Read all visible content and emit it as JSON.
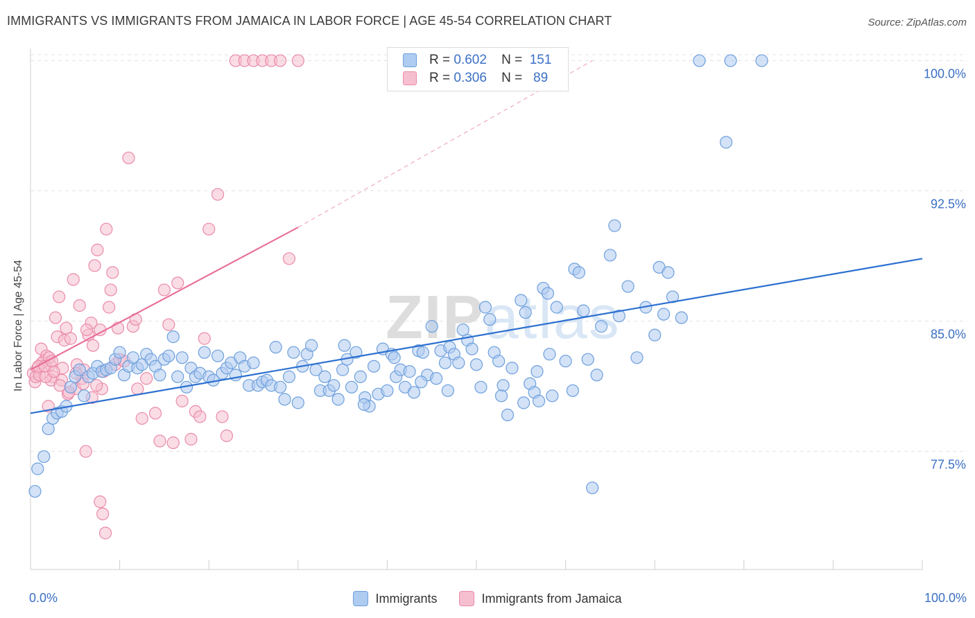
{
  "title": "IMMIGRANTS VS IMMIGRANTS FROM JAMAICA IN LABOR FORCE | AGE 45-54 CORRELATION CHART",
  "source": "Source: ZipAtlas.com",
  "watermark": "ZIPatlas",
  "legend_top": {
    "rows": [
      {
        "r_label": "R =",
        "r_value": "0.602",
        "n_label": "N =",
        "n_value": "151"
      },
      {
        "r_label": "R =",
        "r_value": "0.306",
        "n_label": "N =",
        "n_value": "89"
      }
    ]
  },
  "colors": {
    "blue_fill": "#aecbf0",
    "blue_stroke": "#6d9fdc",
    "blue_line": "#2b6fd0",
    "pink_fill": "#f6bfd0",
    "pink_stroke": "#ea8aa9",
    "pink_line": "#e8709a",
    "grid": "#e3e3e3",
    "tick_text": "#3a6fc4"
  },
  "chart_data": {
    "type": "scatter",
    "title": "IMMIGRANTS VS IMMIGRANTS FROM JAMAICA IN LABOR FORCE | AGE 45-54 CORRELATION CHART",
    "xlabel": "",
    "ylabel": "In Labor Force | Age 45-54",
    "xlim": [
      0,
      100
    ],
    "ylim": [
      70.7,
      100.7
    ],
    "x_tick_labels": [
      "0.0%",
      "100.0%"
    ],
    "y_ticks": [
      77.5,
      85.0,
      92.5,
      100.0
    ],
    "y_tick_labels": [
      "77.5%",
      "85.0%",
      "92.5%",
      "100.0%"
    ],
    "grid": true,
    "legend_position": "top-center and bottom",
    "series": [
      {
        "name": "Immigrants",
        "color": "#aecbf0",
        "trend": {
          "x": [
            0,
            100
          ],
          "y": [
            79.7,
            88.6
          ]
        },
        "points": [
          [
            0.5,
            75.2
          ],
          [
            0.8,
            76.5
          ],
          [
            1.5,
            77.2
          ],
          [
            2,
            78.8
          ],
          [
            2.5,
            79.4
          ],
          [
            3,
            79.7
          ],
          [
            3.5,
            79.8
          ],
          [
            4,
            80.1
          ],
          [
            4.5,
            81.2
          ],
          [
            5,
            81.8
          ],
          [
            5.5,
            82.2
          ],
          [
            6,
            80.7
          ],
          [
            6.5,
            81.8
          ],
          [
            7,
            82.0
          ],
          [
            7.5,
            82.4
          ],
          [
            8,
            82.1
          ],
          [
            8.5,
            82.2
          ],
          [
            9,
            82.3
          ],
          [
            9.5,
            82.8
          ],
          [
            10,
            83.2
          ],
          [
            10.5,
            81.9
          ],
          [
            11,
            82.4
          ],
          [
            11.5,
            82.9
          ],
          [
            12,
            82.3
          ],
          [
            12.5,
            82.5
          ],
          [
            13,
            83.1
          ],
          [
            13.5,
            82.8
          ],
          [
            14,
            82.4
          ],
          [
            14.5,
            81.9
          ],
          [
            15,
            82.8
          ],
          [
            15.5,
            83.0
          ],
          [
            16,
            84.1
          ],
          [
            16.5,
            81.8
          ],
          [
            17,
            82.9
          ],
          [
            17.5,
            81.2
          ],
          [
            18,
            82.3
          ],
          [
            18.5,
            81.8
          ],
          [
            19,
            82.0
          ],
          [
            19.5,
            83.2
          ],
          [
            20,
            81.8
          ],
          [
            20.5,
            81.6
          ],
          [
            21,
            83.0
          ],
          [
            21.5,
            82.0
          ],
          [
            22,
            82.3
          ],
          [
            22.5,
            82.6
          ],
          [
            23,
            81.9
          ],
          [
            23.5,
            82.9
          ],
          [
            24,
            82.4
          ],
          [
            24.5,
            81.3
          ],
          [
            25,
            82.6
          ],
          [
            25.5,
            81.3
          ],
          [
            26,
            81.5
          ],
          [
            26.5,
            81.6
          ],
          [
            27,
            81.3
          ],
          [
            27.5,
            83.5
          ],
          [
            28,
            81.2
          ],
          [
            28.5,
            80.5
          ],
          [
            29,
            81.8
          ],
          [
            29.5,
            83.2
          ],
          [
            30,
            80.3
          ],
          [
            30.5,
            82.4
          ],
          [
            31,
            83.1
          ],
          [
            31.5,
            83.6
          ],
          [
            32,
            82.2
          ],
          [
            32.5,
            81.0
          ],
          [
            33,
            81.8
          ],
          [
            33.5,
            81.0
          ],
          [
            34,
            81.3
          ],
          [
            34.5,
            80.5
          ],
          [
            35,
            82.2
          ],
          [
            35.5,
            82.8
          ],
          [
            36,
            81.2
          ],
          [
            36.5,
            83.2
          ],
          [
            37,
            81.8
          ],
          [
            37.5,
            80.6
          ],
          [
            38,
            80.1
          ],
          [
            38.5,
            82.4
          ],
          [
            39,
            80.8
          ],
          [
            39.5,
            83.4
          ],
          [
            40,
            81.0
          ],
          [
            40.5,
            83.1
          ],
          [
            41,
            81.8
          ],
          [
            41.5,
            82.2
          ],
          [
            42,
            81.2
          ],
          [
            42.5,
            82.1
          ],
          [
            43,
            80.9
          ],
          [
            43.5,
            83.3
          ],
          [
            44,
            83.2
          ],
          [
            44.5,
            81.9
          ],
          [
            45,
            84.7
          ],
          [
            45.5,
            81.7
          ],
          [
            46,
            83.3
          ],
          [
            46.5,
            82.6
          ],
          [
            47,
            83.5
          ],
          [
            47.5,
            83.1
          ],
          [
            48,
            82.6
          ],
          [
            48.5,
            84.5
          ],
          [
            49,
            83.9
          ],
          [
            49.5,
            83.4
          ],
          [
            50,
            82.5
          ],
          [
            50.5,
            81.2
          ],
          [
            51,
            85.8
          ],
          [
            51.5,
            85.1
          ],
          [
            52,
            83.2
          ],
          [
            52.5,
            82.7
          ],
          [
            53,
            81.3
          ],
          [
            53.5,
            79.6
          ],
          [
            54,
            82.3
          ],
          [
            55,
            86.2
          ],
          [
            55.5,
            85.5
          ],
          [
            56,
            81.4
          ],
          [
            56.5,
            80.9
          ],
          [
            57,
            80.4
          ],
          [
            57.5,
            86.9
          ],
          [
            58,
            86.6
          ],
          [
            58.5,
            80.7
          ],
          [
            59,
            85.8
          ],
          [
            60,
            82.7
          ],
          [
            61,
            88.0
          ],
          [
            61.5,
            87.8
          ],
          [
            62,
            85.6
          ],
          [
            62.5,
            82.8
          ],
          [
            63,
            75.4
          ],
          [
            63.5,
            81.9
          ],
          [
            64,
            84.7
          ],
          [
            65,
            88.8
          ],
          [
            65.5,
            90.5
          ],
          [
            66,
            85.3
          ],
          [
            67,
            87.0
          ],
          [
            68,
            82.9
          ],
          [
            69,
            85.8
          ],
          [
            70,
            84.2
          ],
          [
            70.5,
            88.1
          ],
          [
            71,
            85.4
          ],
          [
            71.5,
            87.8
          ],
          [
            72,
            86.4
          ],
          [
            73,
            85.2
          ],
          [
            75,
            100
          ],
          [
            78,
            95.3
          ],
          [
            78.5,
            100
          ],
          [
            82,
            100
          ],
          [
            55.3,
            80.3
          ],
          [
            46.8,
            81.0
          ],
          [
            60.8,
            81.0
          ],
          [
            35.2,
            83.6
          ],
          [
            37.4,
            80.2
          ],
          [
            40.8,
            82.9
          ],
          [
            52.8,
            80.7
          ],
          [
            56.8,
            82.1
          ],
          [
            58.2,
            83.1
          ],
          [
            43.8,
            81.5
          ]
        ]
      },
      {
        "name": "Immigrants from Jamaica",
        "color": "#f6bfd0",
        "trend": {
          "x": [
            0,
            30
          ],
          "y": [
            82.2,
            90.4
          ]
        },
        "trend_extended": {
          "x": [
            30,
            63
          ],
          "y": [
            90.4,
            100
          ]
        },
        "points": [
          [
            0.3,
            82.0
          ],
          [
            0.5,
            81.5
          ],
          [
            0.6,
            81.8
          ],
          [
            0.8,
            82.3
          ],
          [
            1,
            81.9
          ],
          [
            1.2,
            83.4
          ],
          [
            1.5,
            82.7
          ],
          [
            1.8,
            83.0
          ],
          [
            2,
            80.1
          ],
          [
            2.2,
            82.5
          ],
          [
            2.5,
            81.8
          ],
          [
            2.8,
            85.2
          ],
          [
            3,
            84.1
          ],
          [
            3.2,
            86.4
          ],
          [
            3.5,
            81.6
          ],
          [
            3.8,
            83.9
          ],
          [
            4,
            84.6
          ],
          [
            4.2,
            80.8
          ],
          [
            4.5,
            84.0
          ],
          [
            4.8,
            87.4
          ],
          [
            5,
            81.1
          ],
          [
            5.2,
            82.5
          ],
          [
            5.5,
            85.9
          ],
          [
            5.8,
            81.7
          ],
          [
            6,
            82.2
          ],
          [
            6.2,
            77.5
          ],
          [
            6.5,
            84.2
          ],
          [
            6.8,
            84.9
          ],
          [
            7,
            83.6
          ],
          [
            7.2,
            88.2
          ],
          [
            7.5,
            89.1
          ],
          [
            7.8,
            84.5
          ],
          [
            8,
            81.1
          ],
          [
            8.2,
            82.1
          ],
          [
            8.5,
            90.3
          ],
          [
            8.8,
            85.8
          ],
          [
            9,
            86.8
          ],
          [
            9.2,
            87.8
          ],
          [
            9.5,
            82.5
          ],
          [
            9.8,
            84.6
          ],
          [
            10,
            82.8
          ],
          [
            10.5,
            82.7
          ],
          [
            11,
            94.4
          ],
          [
            11.5,
            84.7
          ],
          [
            12,
            81.1
          ],
          [
            12.5,
            79.4
          ],
          [
            13,
            81.7
          ],
          [
            14,
            79.7
          ],
          [
            14.5,
            78.1
          ],
          [
            15,
            86.8
          ],
          [
            15.5,
            84.8
          ],
          [
            16,
            78.0
          ],
          [
            16.5,
            87.2
          ],
          [
            17,
            80.4
          ],
          [
            18,
            78.2
          ],
          [
            18.5,
            79.8
          ],
          [
            19,
            79.5
          ],
          [
            19.5,
            84.0
          ],
          [
            20,
            90.3
          ],
          [
            21,
            92.3
          ],
          [
            21.5,
            79.5
          ],
          [
            22,
            78.4
          ],
          [
            23,
            100
          ],
          [
            24,
            100
          ],
          [
            25,
            100
          ],
          [
            26,
            100
          ],
          [
            27,
            100
          ],
          [
            28,
            100
          ],
          [
            29,
            88.6
          ],
          [
            30,
            100
          ],
          [
            7.8,
            74.6
          ],
          [
            8.1,
            73.9
          ],
          [
            8.4,
            72.8
          ],
          [
            2.3,
            81.6
          ],
          [
            3.6,
            82.3
          ],
          [
            4.3,
            80.9
          ],
          [
            5.1,
            82.0
          ],
          [
            5.9,
            81.4
          ],
          [
            6.3,
            84.5
          ],
          [
            6.9,
            80.6
          ],
          [
            7.4,
            81.3
          ],
          [
            1.3,
            82.6
          ],
          [
            1.7,
            81.8
          ],
          [
            2.1,
            82.9
          ],
          [
            2.6,
            82.1
          ],
          [
            3.3,
            81.3
          ],
          [
            0.9,
            82.4
          ],
          [
            1.6,
            82.4
          ],
          [
            2.4,
            82.7
          ],
          [
            11.8,
            85.1
          ]
        ]
      }
    ]
  },
  "legend_bottom": [
    {
      "label": "Immigrants"
    },
    {
      "label": "Immigrants from Jamaica"
    }
  ]
}
